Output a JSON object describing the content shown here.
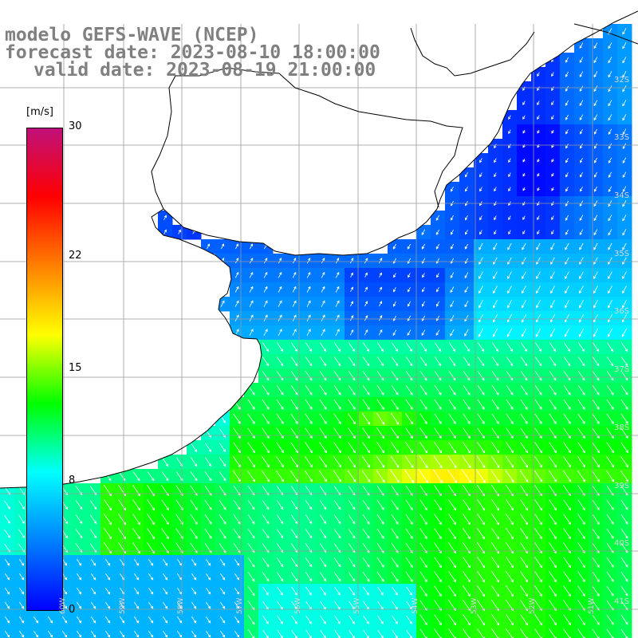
{
  "title": {
    "line1": "modelo GEFS-WAVE (NCEP)",
    "line2": "forecast date: 2023-08-10 18:00:00",
    "line3": "valid date: 2023-08-19 21:00:00"
  },
  "colorbar": {
    "unit": "[m/s]",
    "min": 0,
    "max": 30,
    "ticks": [
      {
        "label": "30",
        "value": 30
      },
      {
        "label": "22",
        "value": 22
      },
      {
        "label": "15",
        "value": 15
      },
      {
        "label": "8",
        "value": 8
      },
      {
        "label": "0",
        "value": 0
      }
    ],
    "colors": [
      "#0000ff",
      "#0080ff",
      "#00ffff",
      "#00ff00",
      "#ffff00",
      "#ff8000",
      "#ff0000",
      "#c0107a"
    ]
  },
  "map": {
    "lat_labels": [
      "32S",
      "33S",
      "34S",
      "35S",
      "36S",
      "37S",
      "38S",
      "39S",
      "40S",
      "41S"
    ],
    "lon_labels": [
      "60W",
      "59W",
      "58W",
      "57W",
      "56W",
      "55W",
      "54W",
      "53W",
      "52W",
      "51W"
    ],
    "arrow_color": "#ffffff",
    "grid_color": "#999999",
    "coast_color": "#000000",
    "land_color": "#ffffff"
  }
}
